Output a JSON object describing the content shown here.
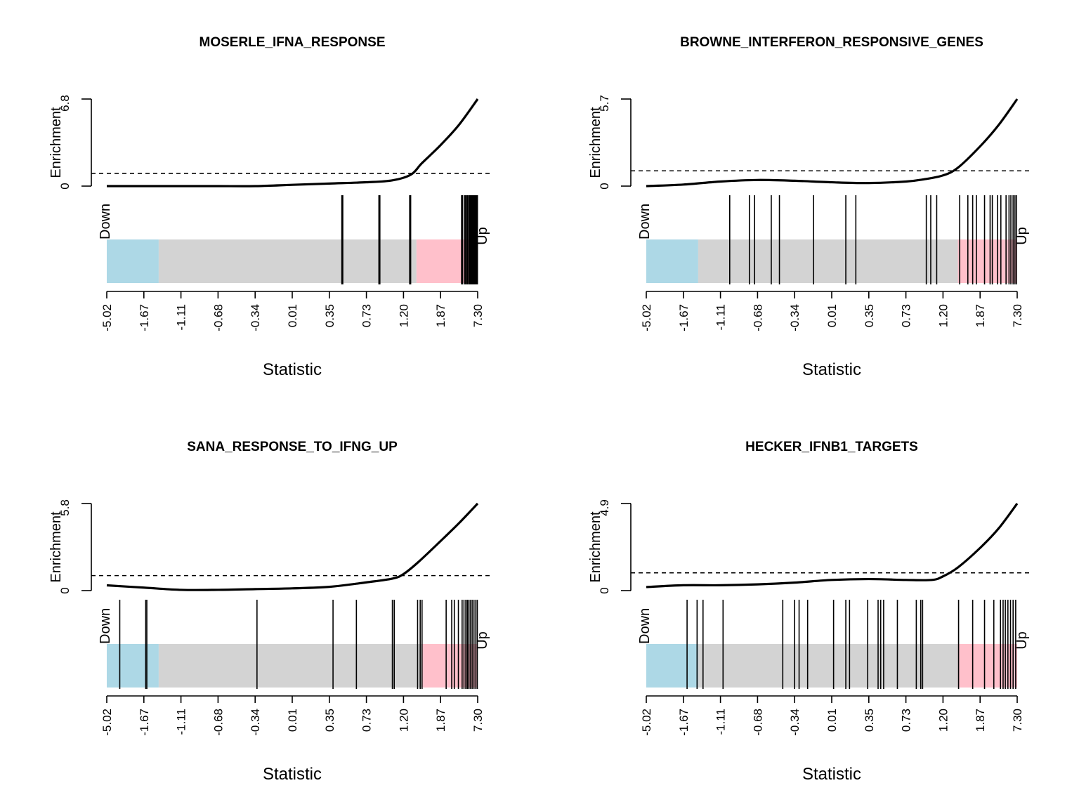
{
  "figure": {
    "background": "#ffffff"
  },
  "chart_data": [
    {
      "type": "barcode",
      "title": "MOSERLE_IFNA_RESPONSE",
      "xlabel": "Statistic",
      "ylabel": "Enrichment",
      "ytick_labels": [
        "0",
        "6.8"
      ],
      "ylim": [
        0,
        6.8
      ],
      "x_tick_labels": [
        "-5.02",
        "-1.67",
        "-1.11",
        "-0.68",
        "-0.34",
        "0.01",
        "0.35",
        "0.73",
        "1.20",
        "1.87",
        "7.30"
      ],
      "band_labels": {
        "down": "Down",
        "up": "Up"
      },
      "colors": {
        "down": "#ADD8E6",
        "middle": "#D3D3D3",
        "up": "#FFC0CB",
        "lines": "#000000"
      },
      "band_fractions": {
        "down_end": 0.14,
        "up_start": 0.835
      },
      "dashed_line_value": 1.0,
      "enrichment_curve": {
        "x_rank_fraction": [
          0,
          0.1,
          0.2,
          0.3,
          0.4,
          0.5,
          0.6,
          0.7,
          0.77,
          0.82,
          0.85,
          0.9,
          0.95,
          1.0
        ],
        "y": [
          0,
          0,
          0,
          0,
          0,
          0.1,
          0.2,
          0.3,
          0.45,
          0.9,
          1.8,
          3.2,
          4.8,
          6.8
        ]
      },
      "gene_rank_fractions": [
        0.635,
        0.735,
        0.818,
        0.958,
        0.966,
        0.972,
        0.978,
        0.982,
        0.986,
        0.99,
        0.994,
        0.998
      ]
    },
    {
      "type": "barcode",
      "title": "BROWNE_INTERFERON_RESPONSIVE_GENES",
      "xlabel": "Statistic",
      "ylabel": "Enrichment",
      "ytick_labels": [
        "0",
        "5.7"
      ],
      "ylim": [
        0,
        5.7
      ],
      "x_tick_labels": [
        "-5.02",
        "-1.67",
        "-1.11",
        "-0.68",
        "-0.34",
        "0.01",
        "0.35",
        "0.73",
        "1.20",
        "1.87",
        "7.30"
      ],
      "band_labels": {
        "down": "Down",
        "up": "Up"
      },
      "colors": {
        "down": "#ADD8E6",
        "middle": "#D3D3D3",
        "up": "#FFC0CB",
        "lines": "#000000"
      },
      "band_fractions": {
        "down_end": 0.14,
        "up_start": 0.84
      },
      "dashed_line_value": 1.0,
      "enrichment_curve": {
        "x_rank_fraction": [
          0,
          0.1,
          0.2,
          0.3,
          0.4,
          0.5,
          0.6,
          0.7,
          0.75,
          0.8,
          0.84,
          0.9,
          0.95,
          1.0
        ],
        "y": [
          0,
          0.1,
          0.3,
          0.4,
          0.35,
          0.25,
          0.2,
          0.3,
          0.45,
          0.7,
          1.2,
          2.6,
          4.0,
          5.7
        ]
      },
      "gene_rank_fractions": [
        0.225,
        0.278,
        0.292,
        0.337,
        0.359,
        0.451,
        0.538,
        0.565,
        0.755,
        0.767,
        0.783,
        0.845,
        0.867,
        0.88,
        0.89,
        0.912,
        0.927,
        0.933,
        0.947,
        0.956,
        0.97,
        0.978,
        0.983,
        0.989,
        0.994,
        0.998
      ]
    },
    {
      "type": "barcode",
      "title": "SANA_RESPONSE_TO_IFNG_UP",
      "xlabel": "Statistic",
      "ylabel": "Enrichment",
      "ytick_labels": [
        "0",
        "5.8"
      ],
      "ylim": [
        0,
        5.8
      ],
      "x_tick_labels": [
        "-5.02",
        "-1.67",
        "-1.11",
        "-0.68",
        "-0.34",
        "0.01",
        "0.35",
        "0.73",
        "1.20",
        "1.87",
        "7.30"
      ],
      "band_labels": {
        "down": "Down",
        "up": "Up"
      },
      "colors": {
        "down": "#ADD8E6",
        "middle": "#D3D3D3",
        "up": "#FFC0CB",
        "lines": "#000000"
      },
      "band_fractions": {
        "down_end": 0.14,
        "up_start": 0.85
      },
      "dashed_line_value": 1.0,
      "enrichment_curve": {
        "x_rank_fraction": [
          0,
          0.1,
          0.2,
          0.3,
          0.4,
          0.5,
          0.6,
          0.7,
          0.77,
          0.8,
          0.84,
          0.9,
          0.95,
          1.0
        ],
        "y": [
          0.35,
          0.2,
          0.05,
          0.05,
          0.1,
          0.15,
          0.25,
          0.55,
          0.8,
          1.1,
          1.9,
          3.3,
          4.5,
          5.8
        ]
      },
      "gene_rank_fractions": [
        0.035,
        0.105,
        0.108,
        0.405,
        0.61,
        0.673,
        0.77,
        0.775,
        0.838,
        0.845,
        0.85,
        0.915,
        0.93,
        0.937,
        0.948,
        0.958,
        0.963,
        0.968,
        0.972,
        0.976,
        0.98,
        0.985,
        0.99,
        0.995,
        0.999
      ]
    },
    {
      "type": "barcode",
      "title": "HECKER_IFNB1_TARGETS",
      "xlabel": "Statistic",
      "ylabel": "Enrichment",
      "ytick_labels": [
        "0",
        "4.9"
      ],
      "ylim": [
        0,
        4.9
      ],
      "x_tick_labels": [
        "-5.02",
        "-1.67",
        "-1.11",
        "-0.68",
        "-0.34",
        "0.01",
        "0.35",
        "0.73",
        "1.20",
        "1.87",
        "7.30"
      ],
      "band_labels": {
        "down": "Down",
        "up": "Up"
      },
      "colors": {
        "down": "#ADD8E6",
        "middle": "#D3D3D3",
        "up": "#FFC0CB",
        "lines": "#000000"
      },
      "band_fractions": {
        "down_end": 0.14,
        "up_start": 0.84
      },
      "dashed_line_value": 1.0,
      "enrichment_curve": {
        "x_rank_fraction": [
          0,
          0.1,
          0.2,
          0.3,
          0.4,
          0.5,
          0.6,
          0.7,
          0.77,
          0.8,
          0.84,
          0.9,
          0.95,
          1.0
        ],
        "y": [
          0.2,
          0.3,
          0.3,
          0.35,
          0.45,
          0.6,
          0.65,
          0.6,
          0.6,
          0.8,
          1.3,
          2.4,
          3.5,
          4.9
        ]
      },
      "gene_rank_fractions": [
        0.11,
        0.137,
        0.153,
        0.207,
        0.368,
        0.4,
        0.412,
        0.435,
        0.505,
        0.538,
        0.548,
        0.597,
        0.625,
        0.632,
        0.64,
        0.677,
        0.728,
        0.74,
        0.745,
        0.842,
        0.88,
        0.912,
        0.937,
        0.955,
        0.962,
        0.968,
        0.975,
        0.982,
        0.989,
        0.996
      ]
    }
  ]
}
